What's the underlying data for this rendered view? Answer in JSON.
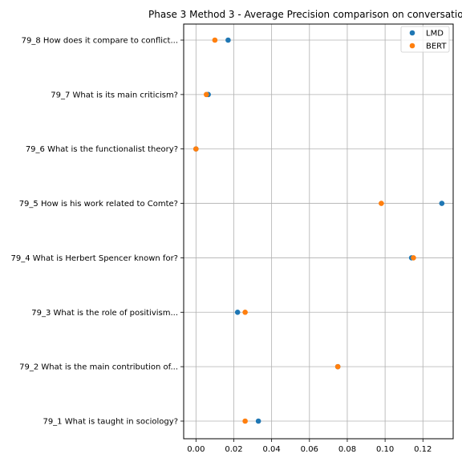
{
  "chart_data": {
    "type": "scatter",
    "title": "Phase 3 Method 3 - Average Precision comparison on conversatio",
    "xlabel": "",
    "ylabel": "",
    "xlim": [
      -0.0065,
      0.136
    ],
    "x_ticks": [
      "0.00",
      "0.02",
      "0.04",
      "0.06",
      "0.08",
      "0.10",
      "0.12"
    ],
    "x_tick_values": [
      0.0,
      0.02,
      0.04,
      0.06,
      0.08,
      0.1,
      0.12
    ],
    "categories": [
      "79_1 What is taught in sociology?",
      "79_2 What is the main contribution of...",
      "79_3 What is the role of positivism...",
      "79_4 What is Herbert Spencer known for?",
      "79_5 How is his work related to Comte?",
      "79_6 What is the functionalist theory?",
      "79_7 What is its main criticism?",
      "79_8 How does it compare to conflict..."
    ],
    "grid": true,
    "legend_position": "top-right",
    "series": [
      {
        "name": "LMD",
        "color": "#1f77b4",
        "values": [
          0.033,
          0.075,
          0.022,
          0.114,
          0.13,
          0.0,
          0.0065,
          0.017
        ]
      },
      {
        "name": "BERT",
        "color": "#ff7f0e",
        "values": [
          0.026,
          0.075,
          0.026,
          0.115,
          0.098,
          0.0,
          0.0055,
          0.01
        ]
      }
    ]
  }
}
